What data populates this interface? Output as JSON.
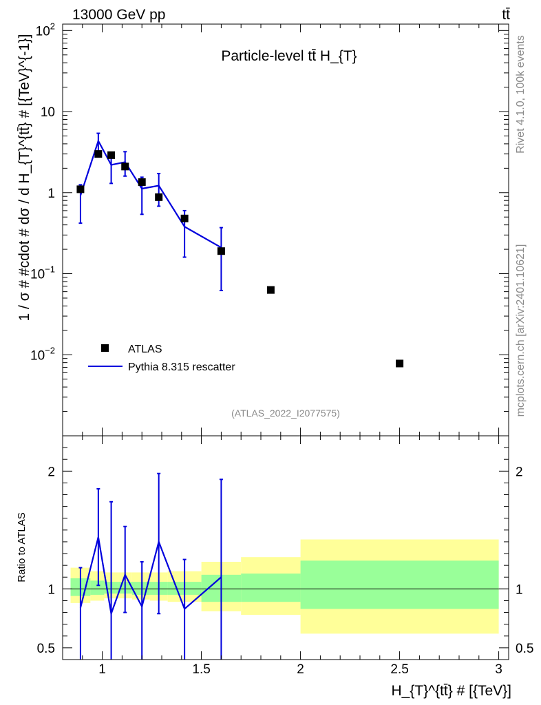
{
  "header": {
    "energy_label": "13000 GeV pp",
    "process_label": "tt̄"
  },
  "side_labels": {
    "rivet": "Rivet 4.1.0,  100k events",
    "mcplots": "mcplots.cern.ch [arXiv:2401.10621]"
  },
  "chart_data": [
    {
      "type": "scatter",
      "panel": "main",
      "title": "Particle-level tt̄  H_{T}",
      "watermark": "(ATLAS_2022_I2077575)",
      "xlabel": "H_{T}^{tt̄} # [{TeV}]",
      "ylabel": "1 / σ # #cdot # dσ / d H_{T}^{tt̄} # [{TeV}^{-1}]",
      "yscale": "log",
      "xlim": [
        0.8,
        3.05
      ],
      "ylim": [
        0.001,
        120
      ],
      "ytick_labels": [
        {
          "value": 0.01,
          "base": "10",
          "exp": "−2"
        },
        {
          "value": 0.1,
          "base": "10",
          "exp": "−1"
        },
        {
          "value": 1,
          "base": "1",
          "exp": ""
        },
        {
          "value": 10,
          "base": "10",
          "exp": ""
        },
        {
          "value": 100,
          "base": "10",
          "exp": "2"
        }
      ],
      "legend": {
        "placement": "lower-left",
        "entries": [
          "ATLAS",
          "Pythia 8.315 rescatter"
        ]
      },
      "series": [
        {
          "name": "ATLAS",
          "style": "markers",
          "color": "#000000",
          "x": [
            0.89,
            0.98,
            1.045,
            1.115,
            1.2,
            1.285,
            1.415,
            1.6,
            1.85,
            2.5
          ],
          "y": [
            1.1,
            3.0,
            2.9,
            2.1,
            1.35,
            0.88,
            0.48,
            0.19,
            0.063,
            0.0078
          ]
        },
        {
          "name": "Pythia 8.315 rescatter",
          "style": "line",
          "color": "#0000dd",
          "x": [
            0.89,
            0.98,
            1.045,
            1.115,
            1.2,
            1.285,
            1.415,
            1.6
          ],
          "y": [
            0.92,
            4.35,
            2.2,
            2.38,
            1.12,
            1.22,
            0.38,
            0.21
          ],
          "yerr_low": [
            0.42,
            2.95,
            1.3,
            1.6,
            0.54,
            0.68,
            0.16,
            0.062
          ],
          "yerr_high": [
            1.25,
            5.4,
            2.85,
            3.2,
            1.55,
            1.72,
            0.6,
            0.37
          ]
        }
      ]
    },
    {
      "type": "line",
      "panel": "ratio",
      "ylabel": "Ratio to ATLAS",
      "xlim": [
        0.8,
        3.05
      ],
      "ylim": [
        0.4,
        2.3
      ],
      "xticks": [
        1,
        1.5,
        2,
        2.5,
        3
      ],
      "xtick_labels": [
        "1",
        "1.5",
        "2",
        "2.5",
        "3"
      ],
      "yticks": [
        0.5,
        1,
        2
      ],
      "ytick_labels": [
        "0.5",
        "1",
        "2"
      ],
      "bins": [
        {
          "lo": 0.84,
          "hi": 0.94,
          "yellow": [
            0.88,
            1.18
          ],
          "green": [
            0.94,
            1.09
          ]
        },
        {
          "lo": 0.94,
          "hi": 1.01,
          "yellow": [
            0.9,
            1.15
          ],
          "green": [
            0.95,
            1.07
          ]
        },
        {
          "lo": 1.01,
          "hi": 1.08,
          "yellow": [
            0.92,
            1.14
          ],
          "green": [
            0.96,
            1.06
          ]
        },
        {
          "lo": 1.08,
          "hi": 1.15,
          "yellow": [
            0.92,
            1.14
          ],
          "green": [
            0.96,
            1.06
          ]
        },
        {
          "lo": 1.15,
          "hi": 1.24,
          "yellow": [
            0.91,
            1.14
          ],
          "green": [
            0.95,
            1.06
          ]
        },
        {
          "lo": 1.24,
          "hi": 1.33,
          "yellow": [
            0.9,
            1.14
          ],
          "green": [
            0.95,
            1.06
          ]
        },
        {
          "lo": 1.33,
          "hi": 1.5,
          "yellow": [
            0.89,
            1.15
          ],
          "green": [
            0.95,
            1.06
          ]
        },
        {
          "lo": 1.5,
          "hi": 1.7,
          "yellow": [
            0.81,
            1.23
          ],
          "green": [
            0.89,
            1.12
          ]
        },
        {
          "lo": 1.7,
          "hi": 2.0,
          "yellow": [
            0.78,
            1.27
          ],
          "green": [
            0.89,
            1.13
          ]
        },
        {
          "lo": 2.0,
          "hi": 3.0,
          "yellow": [
            0.62,
            1.42
          ],
          "green": [
            0.83,
            1.24
          ]
        }
      ],
      "series": [
        {
          "name": "Pythia 8.315 rescatter / ATLAS",
          "color": "#0000dd",
          "x": [
            0.89,
            0.98,
            1.045,
            1.115,
            1.2,
            1.285,
            1.415,
            1.6
          ],
          "y": [
            0.84,
            1.44,
            0.79,
            1.12,
            0.85,
            1.4,
            0.83,
            1.1
          ],
          "yerr_low": [
            0.2,
            1.03,
            0.39,
            0.8,
            0.2,
            0.79,
            0.2,
            0.2
          ],
          "yerr_high": [
            1.18,
            1.85,
            1.74,
            1.53,
            1.23,
            1.98,
            1.25,
            1.93
          ]
        }
      ]
    }
  ]
}
